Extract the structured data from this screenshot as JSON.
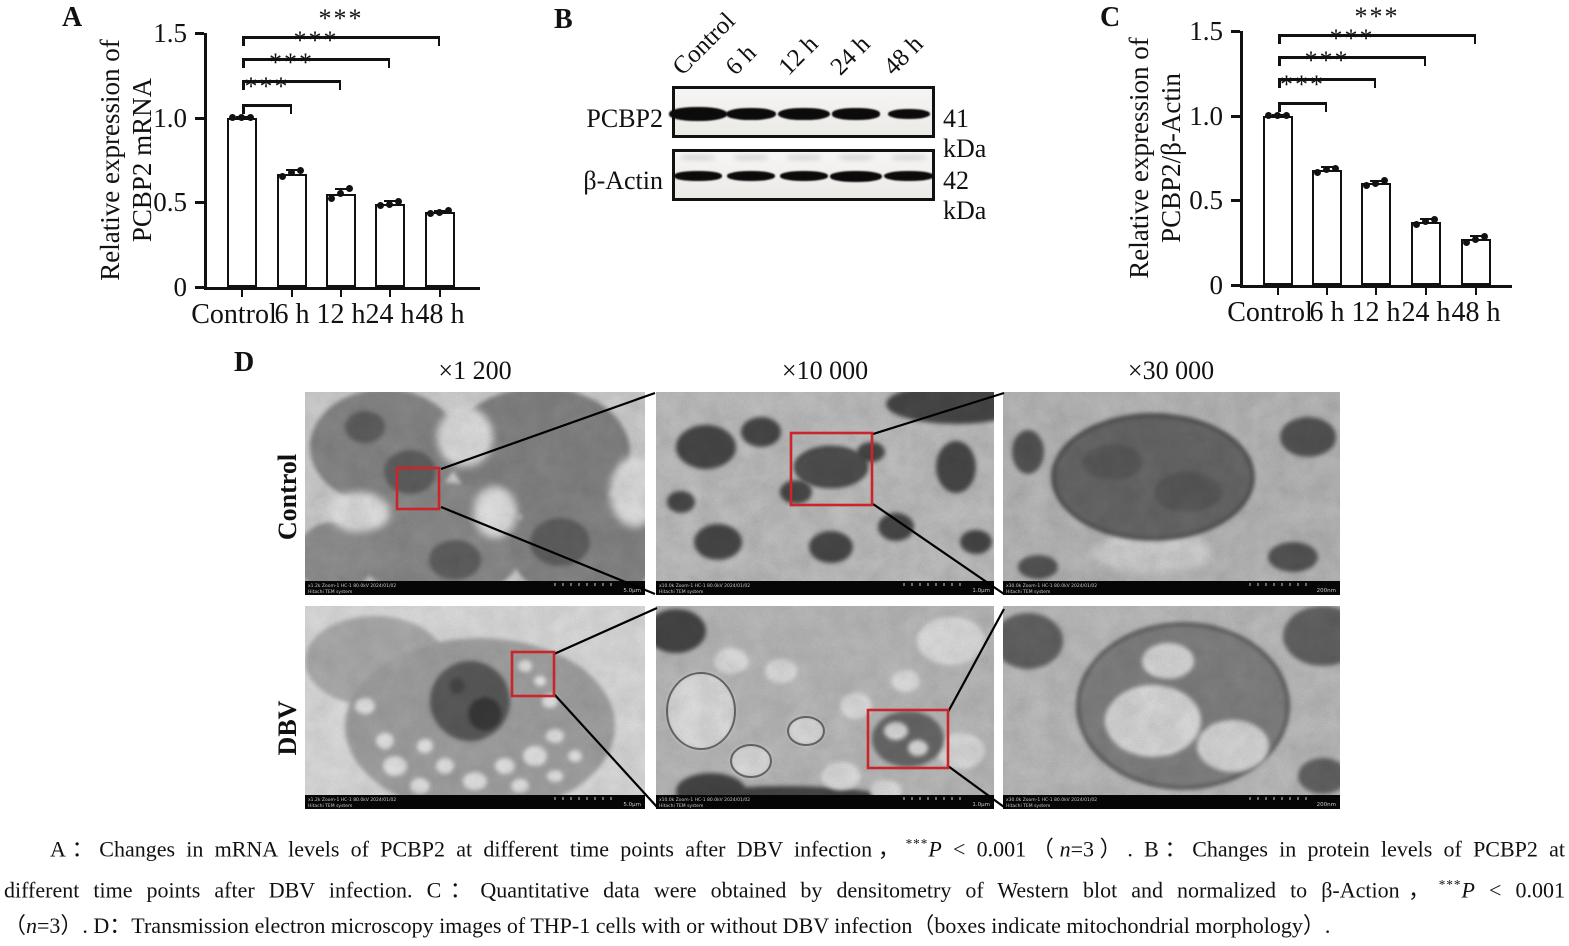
{
  "figure": {
    "panel_labels": {
      "a": "A",
      "b": "B",
      "c": "C",
      "d": "D"
    }
  },
  "chart_data": [
    {
      "id": "A",
      "type": "bar",
      "panel_label": "A",
      "title": "",
      "ylabel": "Relative expression of PCBP2 mRNA",
      "ylabel_lines": [
        "Relative expression of",
        "PCBP2 mRNA"
      ],
      "xlabel": "",
      "categories": [
        "Control",
        "6 h",
        "12 h",
        "24 h",
        "48 h"
      ],
      "values": [
        1.0,
        0.67,
        0.55,
        0.49,
        0.44
      ],
      "errors": [
        0.006,
        0.022,
        0.03,
        0.015,
        0.01
      ],
      "points": [
        [
          1.0,
          1.0,
          1.0
        ],
        [
          0.655,
          0.675,
          0.69
        ],
        [
          0.525,
          0.55,
          0.58
        ],
        [
          0.48,
          0.49,
          0.505
        ],
        [
          0.435,
          0.44,
          0.45
        ]
      ],
      "yticks": [
        "0",
        "0.5",
        "1.0",
        "1.5"
      ],
      "ylim": [
        0,
        1.5
      ],
      "grid": false,
      "legend": "none",
      "bar_fill": "#ffffff",
      "bar_edge": "#111111",
      "significance": [
        {
          "from": "Control",
          "to": "6 h",
          "label": "***",
          "height": 1.08
        },
        {
          "from": "Control",
          "to": "12 h",
          "label": "***",
          "height": 1.22
        },
        {
          "from": "Control",
          "to": "24 h",
          "label": "***",
          "height": 1.35
        },
        {
          "from": "Control",
          "to": "48 h",
          "label": "***",
          "height": 1.48
        }
      ]
    },
    {
      "id": "C",
      "type": "bar",
      "panel_label": "C",
      "title": "",
      "ylabel": "Relative expression of PCBP2/β-Actin",
      "ylabel_lines": [
        "Relative expression of",
        "PCBP2/β-Actin"
      ],
      "xlabel": "",
      "categories": [
        "Control",
        "6 h",
        "12 h",
        "24 h",
        "48 h"
      ],
      "values": [
        1.0,
        0.68,
        0.6,
        0.37,
        0.27
      ],
      "errors": [
        0.006,
        0.014,
        0.014,
        0.018,
        0.02
      ],
      "points": [
        [
          1.0,
          1.0,
          1.0
        ],
        [
          0.665,
          0.68,
          0.69
        ],
        [
          0.59,
          0.6,
          0.615
        ],
        [
          0.355,
          0.375,
          0.385
        ],
        [
          0.25,
          0.27,
          0.285
        ]
      ],
      "yticks": [
        "0",
        "0.5",
        "1.0",
        "1.5"
      ],
      "ylim": [
        0,
        1.5
      ],
      "grid": false,
      "legend": "none",
      "bar_fill": "#ffffff",
      "bar_edge": "#111111",
      "significance": [
        {
          "from": "Control",
          "to": "6 h",
          "label": "***",
          "height": 1.08
        },
        {
          "from": "Control",
          "to": "12 h",
          "label": "***",
          "height": 1.22
        },
        {
          "from": "Control",
          "to": "24 h",
          "label": "***",
          "height": 1.35
        },
        {
          "from": "Control",
          "to": "48 h",
          "label": "***",
          "height": 1.48
        }
      ]
    }
  ],
  "blot": {
    "lane_labels": [
      "Control",
      "6 h",
      "12 h",
      "24 h",
      "48 h"
    ],
    "rows": [
      {
        "protein": "PCBP2",
        "kda": "41 kDa",
        "band_intensities": [
          1.0,
          0.78,
          0.82,
          0.68,
          0.52
        ]
      },
      {
        "protein": "β-Actin",
        "kda": "42 kDa",
        "band_intensities": [
          0.78,
          0.85,
          0.84,
          1.0,
          0.92
        ]
      }
    ]
  },
  "tem": {
    "column_titles": [
      "×1 200",
      "×10 000",
      "×30 000"
    ],
    "row_labels": [
      "Control",
      "DBV"
    ],
    "roi_color": "#c9252b",
    "images": [
      {
        "id": "control-x1200",
        "meta": "x1.2k Zoom-1 HC-1 80.0kV 2024/01/02",
        "system": "Hitachi TEM system",
        "scale": "5.0μm"
      },
      {
        "id": "control-x10000",
        "meta": "x10.0k Zoom-1 HC-1 80.0kV 2024/01/02",
        "system": "Hitachi TEM system",
        "scale": "1.0μm"
      },
      {
        "id": "control-x30000",
        "meta": "x30.0k Zoom-1 HC-1 80.0kV 2024/01/02",
        "system": "Hitachi TEM system",
        "scale": "200nm"
      },
      {
        "id": "dbv-x1200",
        "meta": "x1.2k Zoom-1 HC-1 80.0kV 2024/01/02",
        "system": "Hitachi TEM system",
        "scale": "5.0μm"
      },
      {
        "id": "dbv-x10000",
        "meta": "x10.0k Zoom-1 HC-1 80.0kV 2024/01/02",
        "system": "Hitachi TEM system",
        "scale": "1.0μm"
      },
      {
        "id": "dbv-x30000",
        "meta": "x30.0k Zoom-1 HC-1 80.0kV 2024/01/02",
        "system": "Hitachi TEM system",
        "scale": "200nm"
      }
    ]
  },
  "caption": {
    "lines": [
      {
        "indent": true,
        "segments": [
          {
            "t": "A：Changes in mRNA levels of PCBP2 at different time points after DBV infection，"
          },
          {
            "t": "***",
            "style": "sup"
          },
          {
            "t": "P",
            "style": "i"
          },
          {
            "t": " < 0.001（"
          },
          {
            "t": "n",
            "style": "i"
          },
          {
            "t": "=3）. B：Changes in protein levels of PCBP2 at"
          }
        ]
      },
      {
        "segments": [
          {
            "t": "different time points after DBV infection. C：Quantitative data were obtained by densitometry of Western blot and normalized to β-Action，"
          },
          {
            "t": "***",
            "style": "sup"
          },
          {
            "t": "P",
            "style": "i"
          },
          {
            "t": " < 0.001"
          }
        ]
      },
      {
        "last": true,
        "segments": [
          {
            "t": "（"
          },
          {
            "t": "n",
            "style": "i"
          },
          {
            "t": "=3）. D：Transmission electron microscopy images of THP-1 cells with or without DBV infection（boxes indicate mitochondrial morphology）."
          }
        ]
      }
    ]
  },
  "colors": {
    "roi_red": "#c9252b",
    "ink": "#111111"
  }
}
